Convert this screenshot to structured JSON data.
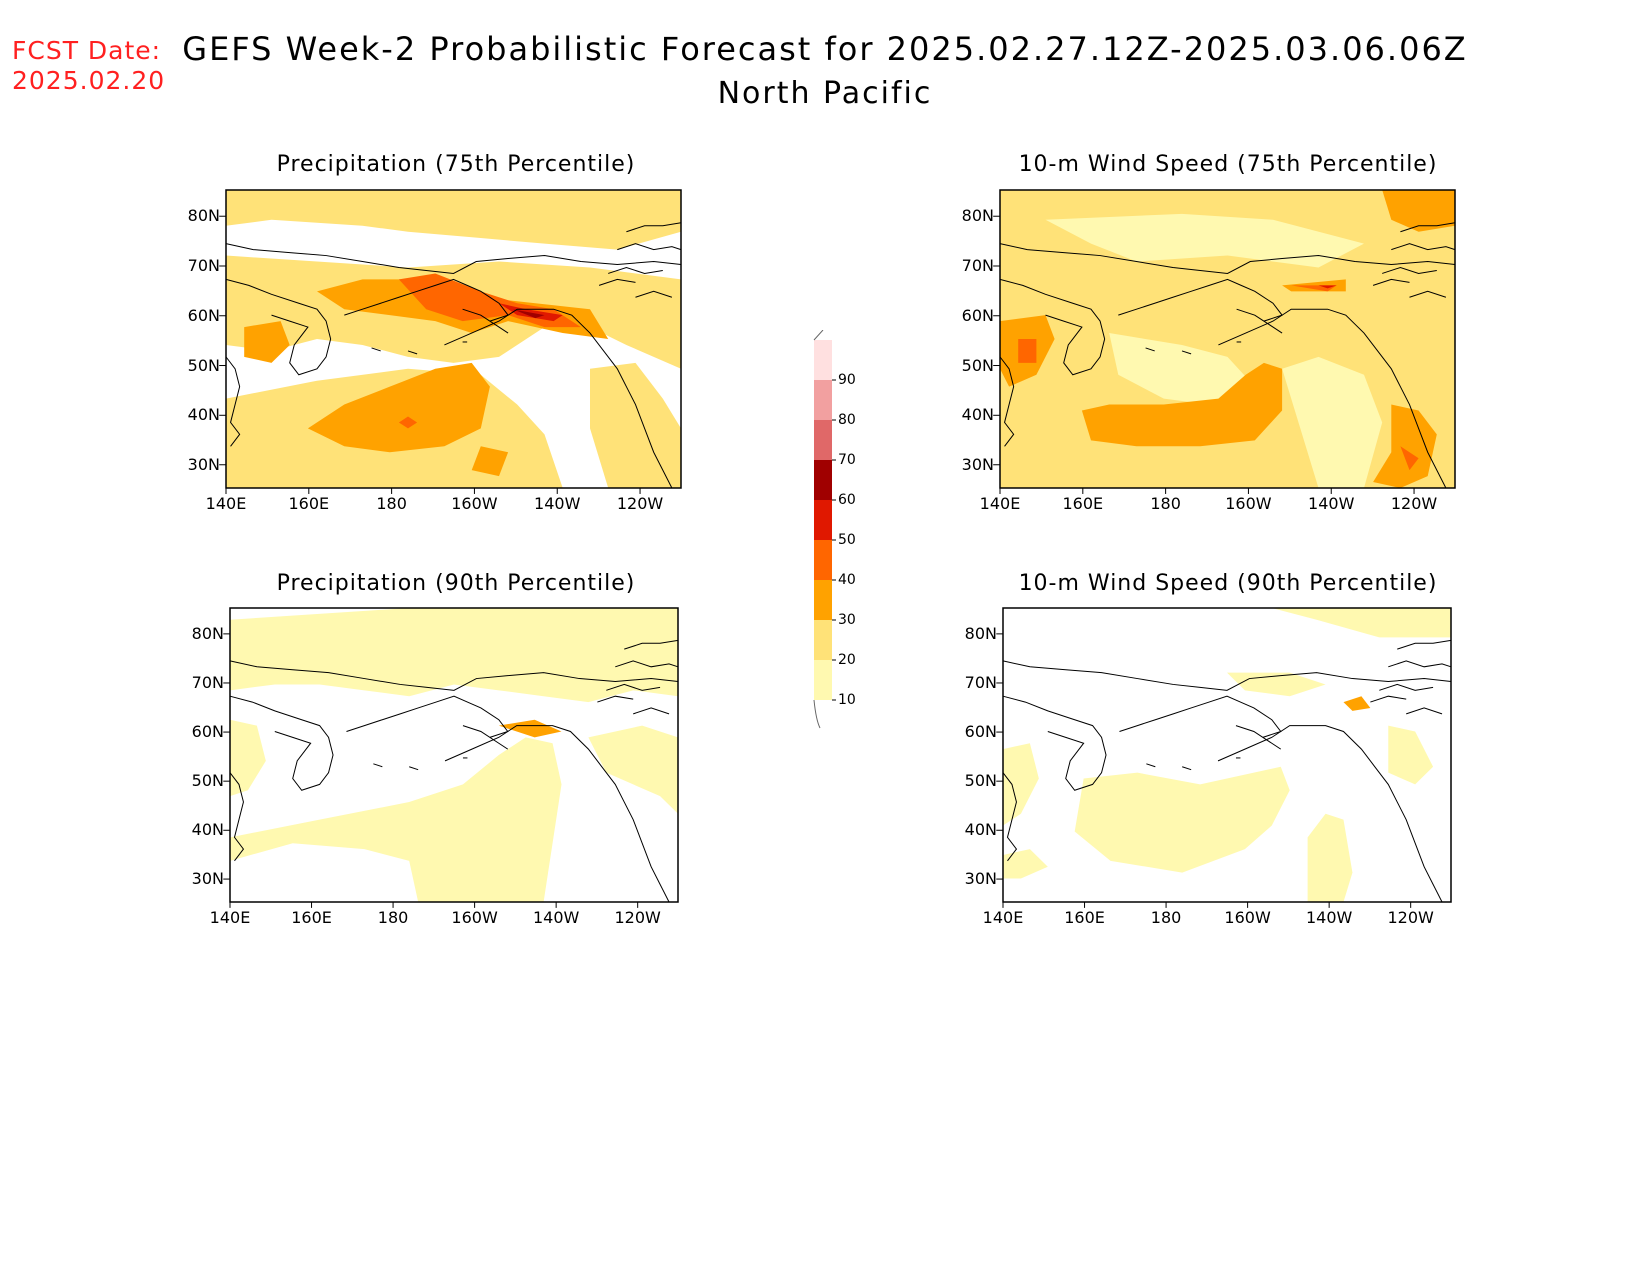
{
  "header": {
    "fcst_label": "FCST Date:",
    "fcst_date": "2025.02.20",
    "title": "GEFS Week-2 Probabilistic Forecast for 2025.02.27.12Z-2025.03.06.06Z",
    "region": "North Pacific"
  },
  "axes": {
    "lat_labels": [
      "80N",
      "70N",
      "60N",
      "50N",
      "40N",
      "30N"
    ],
    "lon_labels": [
      "140E",
      "160E",
      "180",
      "160W",
      "140W",
      "120W"
    ]
  },
  "panels": [
    {
      "id": "precip-75",
      "title": "Precipitation (75th Percentile)"
    },
    {
      "id": "wind-75",
      "title": "10-m Wind Speed (75th Percentile)"
    },
    {
      "id": "precip-90",
      "title": "Precipitation (90th Percentile)"
    },
    {
      "id": "wind-90",
      "title": "10-m Wind Speed (90th Percentile)"
    }
  ],
  "colorbar": {
    "levels": [
      "10",
      "20",
      "30",
      "40",
      "50",
      "60",
      "70",
      "80",
      "90"
    ],
    "colors": [
      "#fff9b0",
      "#ffe278",
      "#ffa200",
      "#ff6600",
      "#e01800",
      "#a00000",
      "#e06868",
      "#f2a0a0",
      "#ffe0e0"
    ]
  }
}
